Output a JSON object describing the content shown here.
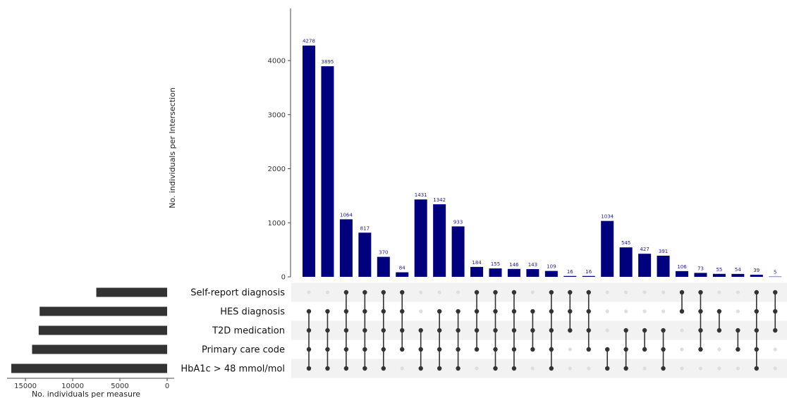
{
  "colors": {
    "intersection_bar": "#00007f",
    "bar_label": "#1a1a8c",
    "set_bar": "#333333",
    "active_dot": "#333333",
    "inactive_dot": "#dedede",
    "row_shade": "#f2f2f2"
  },
  "chart_data": {
    "type": "upset",
    "intersection_axis": {
      "label": "No. individuals per Intersection",
      "ylim": [
        0,
        4500
      ],
      "ticks": [
        0,
        1000,
        2000,
        3000,
        4000
      ],
      "tick_labels": [
        "0",
        "1000",
        "2000",
        "3000",
        "4000"
      ]
    },
    "set_axis": {
      "label": "No. individuals per measure",
      "xlim": [
        16500,
        0
      ],
      "ticks": [
        15000,
        10000,
        5000,
        0
      ],
      "tick_labels": [
        "15000",
        "10000",
        "5000",
        "0"
      ]
    },
    "sets": [
      {
        "name": "Self-report diagnosis",
        "size": 7500
      },
      {
        "name": "HES diagnosis",
        "size": 13500
      },
      {
        "name": "T2D medication",
        "size": 13600
      },
      {
        "name": "Primary care code",
        "size": 14300
      },
      {
        "name": "HbA1c > 48 mmol/mol",
        "size": 16500
      }
    ],
    "intersections": [
      {
        "value": 4278,
        "label": "4278",
        "members": [
          1,
          2,
          3,
          4
        ]
      },
      {
        "value": 3895,
        "label": "3895",
        "members": [
          1,
          2,
          3,
          4
        ]
      },
      {
        "value": 1064,
        "label": "1064",
        "members": [
          0,
          1,
          2,
          3,
          4
        ]
      },
      {
        "value": 817,
        "label": "817",
        "members": [
          0,
          1,
          2,
          3,
          4
        ]
      },
      {
        "value": 370,
        "label": "370",
        "members": [
          0,
          1,
          2,
          3,
          4
        ]
      },
      {
        "value": 84,
        "label": "84",
        "members": [
          0,
          1,
          2,
          3
        ]
      },
      {
        "value": 1431,
        "label": "1431",
        "members": [
          2,
          3,
          4
        ]
      },
      {
        "value": 1342,
        "label": "1342",
        "members": [
          1,
          2,
          3,
          4
        ]
      },
      {
        "value": 933,
        "label": "933",
        "members": [
          1,
          2,
          3,
          4
        ]
      },
      {
        "value": 184,
        "label": "184",
        "members": [
          0,
          1,
          2,
          3
        ]
      },
      {
        "value": 155,
        "label": "155",
        "members": [
          0,
          1,
          2,
          3,
          4
        ]
      },
      {
        "value": 146,
        "label": "146",
        "members": [
          0,
          1,
          2,
          3,
          4
        ]
      },
      {
        "value": 143,
        "label": "143",
        "members": [
          1,
          2,
          3
        ]
      },
      {
        "value": 109,
        "label": "109",
        "members": [
          0,
          1,
          2,
          3,
          4
        ]
      },
      {
        "value": 16,
        "label": "16",
        "members": [
          0,
          1,
          2
        ]
      },
      {
        "value": 16,
        "label": "16",
        "members": [
          0,
          1,
          2,
          3
        ]
      },
      {
        "value": 1034,
        "label": "1034",
        "members": [
          3,
          4
        ]
      },
      {
        "value": 545,
        "label": "545",
        "members": [
          2,
          3,
          4
        ]
      },
      {
        "value": 427,
        "label": "427",
        "members": [
          2,
          3
        ]
      },
      {
        "value": 391,
        "label": "391",
        "members": [
          2,
          3,
          4
        ]
      },
      {
        "value": 106,
        "label": "106",
        "members": [
          0,
          1
        ]
      },
      {
        "value": 73,
        "label": "73",
        "members": [
          0,
          1,
          2,
          3
        ]
      },
      {
        "value": 55,
        "label": "55",
        "members": [
          1,
          2
        ]
      },
      {
        "value": 54,
        "label": "54",
        "members": [
          2,
          3
        ]
      },
      {
        "value": 39,
        "label": "39",
        "members": [
          0,
          1,
          2,
          3,
          4
        ]
      },
      {
        "value": 5,
        "label": "5",
        "members": [
          0,
          1,
          2
        ]
      }
    ]
  }
}
